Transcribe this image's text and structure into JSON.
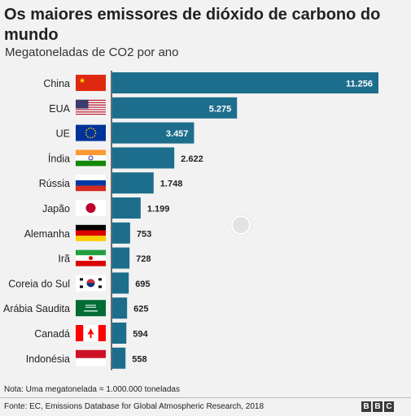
{
  "header": {
    "title": "Os maiores emissores de dióxido de carbono do mundo",
    "subtitle": "Megatoneladas de CO2 por ano"
  },
  "footer": {
    "note": "Nota: Uma megatonelada = 1.000.000 toneladas",
    "source": "Fonte: EC, Emissions Database for Global Atmospheric Research, 2018",
    "logo_letters": [
      "B",
      "B",
      "C"
    ]
  },
  "colors": {
    "bar": "#1d6e8c",
    "label_inside": "#ffffff",
    "label_outside": "#222222",
    "axis": "#333333"
  },
  "chart_data": {
    "type": "bar",
    "orientation": "horizontal",
    "title": "Os maiores emissores de dióxido de carbono do mundo",
    "subtitle": "Megatoneladas de CO2 por ano",
    "categories": [
      "China",
      "EUA",
      "UE",
      "Índia",
      "Rússia",
      "Japão",
      "Alemanha",
      "Irã",
      "Coreia do Sul",
      "Arábia Saudita",
      "Canadá",
      "Indonésia"
    ],
    "values": [
      11256,
      5275,
      3457,
      2622,
      1748,
      1199,
      753,
      728,
      695,
      625,
      594,
      558
    ],
    "value_labels": [
      "11.256",
      "5.275",
      "3.457",
      "2.622",
      "1.748",
      "1.199",
      "753",
      "728",
      "695",
      "625",
      "594",
      "558"
    ],
    "flags": [
      "china-flag",
      "usa-flag",
      "eu-flag",
      "india-flag",
      "russia-flag",
      "japan-flag",
      "germany-flag",
      "iran-flag",
      "south-korea-flag",
      "saudi-arabia-flag",
      "canada-flag",
      "indonesia-flag"
    ],
    "xlim": [
      0,
      11256
    ],
    "grid": false,
    "legend": "none"
  }
}
